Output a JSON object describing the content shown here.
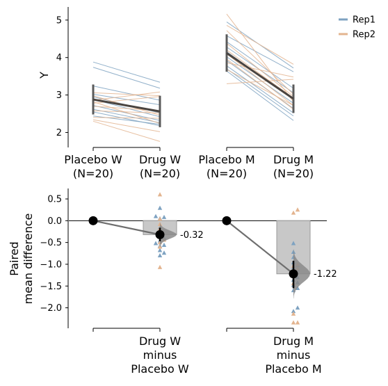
{
  "chart_data": [
    {
      "type": "line",
      "ylabel": "Y",
      "ylim": [
        1.6,
        5.35
      ],
      "yticks": [
        "2",
        "3",
        "4",
        "5"
      ],
      "groups": [
        {
          "label": "Placebo W\n(N=20)"
        },
        {
          "label": "Drug W\n(N=20)"
        },
        {
          "label": "Placebo M\n(N=20)"
        },
        {
          "label": "Drug M\n(N=20)"
        }
      ],
      "legend": {
        "placement": "top-right",
        "entries": [
          {
            "name": "Rep1",
            "color": "#7ea2c1"
          },
          {
            "name": "Rep2",
            "color": "#e3b48f"
          }
        ]
      },
      "pairs_W": [
        {
          "rep": "Rep1",
          "values": [
            3.88,
            3.34
          ]
        },
        {
          "rep": "Rep1",
          "values": [
            3.74,
            3.18
          ]
        },
        {
          "rep": "Rep1",
          "values": [
            3.24,
            2.86
          ]
        },
        {
          "rep": "Rep1",
          "values": [
            3.02,
            2.74
          ]
        },
        {
          "rep": "Rep1",
          "values": [
            2.95,
            2.52
          ]
        },
        {
          "rep": "Rep1",
          "values": [
            2.88,
            2.42
          ]
        },
        {
          "rep": "Rep1",
          "values": [
            2.72,
            2.32
          ]
        },
        {
          "rep": "Rep1",
          "values": [
            2.62,
            2.26
          ]
        },
        {
          "rep": "Rep1",
          "values": [
            2.55,
            2.18
          ]
        },
        {
          "rep": "Rep1",
          "values": [
            2.44,
            2.22
          ]
        },
        {
          "rep": "Rep2",
          "values": [
            3.06,
            2.98
          ]
        },
        {
          "rep": "Rep2",
          "values": [
            2.98,
            2.46
          ]
        },
        {
          "rep": "Rep2",
          "values": [
            2.86,
            3.08
          ]
        },
        {
          "rep": "Rep2",
          "values": [
            2.78,
            2.96
          ]
        },
        {
          "rep": "Rep2",
          "values": [
            2.82,
            2.24
          ]
        },
        {
          "rep": "Rep2",
          "values": [
            2.7,
            2.58
          ]
        },
        {
          "rep": "Rep2",
          "values": [
            2.58,
            2.52
          ]
        },
        {
          "rep": "Rep2",
          "values": [
            2.4,
            2.38
          ]
        },
        {
          "rep": "Rep2",
          "values": [
            2.34,
            2.02
          ]
        },
        {
          "rep": "Rep2",
          "values": [
            2.3,
            1.76
          ]
        }
      ],
      "pairs_M": [
        {
          "rep": "Rep1",
          "values": [
            4.95,
            3.72
          ]
        },
        {
          "rep": "Rep1",
          "values": [
            4.58,
            3.62
          ]
        },
        {
          "rep": "Rep1",
          "values": [
            4.42,
            3.18
          ]
        },
        {
          "rep": "Rep1",
          "values": [
            4.28,
            3.06
          ]
        },
        {
          "rep": "Rep1",
          "values": [
            4.16,
            2.88
          ]
        },
        {
          "rep": "Rep1",
          "values": [
            4.02,
            2.78
          ]
        },
        {
          "rep": "Rep1",
          "values": [
            3.92,
            2.64
          ]
        },
        {
          "rep": "Rep1",
          "values": [
            3.78,
            2.52
          ]
        },
        {
          "rep": "Rep1",
          "values": [
            3.7,
            2.44
          ]
        },
        {
          "rep": "Rep1",
          "values": [
            3.64,
            2.32
          ]
        },
        {
          "rep": "Rep2",
          "values": [
            5.16,
            2.82
          ]
        },
        {
          "rep": "Rep2",
          "values": [
            4.86,
            3.82
          ]
        },
        {
          "rep": "Rep2",
          "values": [
            4.72,
            3.02
          ]
        },
        {
          "rep": "Rep2",
          "values": [
            4.38,
            2.96
          ]
        },
        {
          "rep": "Rep2",
          "values": [
            4.2,
            2.92
          ]
        },
        {
          "rep": "Rep2",
          "values": [
            4.1,
            2.72
          ]
        },
        {
          "rep": "Rep2",
          "values": [
            3.96,
            2.62
          ]
        },
        {
          "rep": "Rep2",
          "values": [
            3.86,
            3.48
          ]
        },
        {
          "rep": "Rep2",
          "values": [
            3.3,
            3.42
          ]
        },
        {
          "rep": "Rep2",
          "values": [
            3.68,
            2.72
          ]
        }
      ],
      "summary": [
        {
          "group": "Placebo W",
          "mean": 2.88,
          "sd_low": 2.48,
          "sd_high": 3.28
        },
        {
          "group": "Drug W",
          "mean": 2.56,
          "sd_low": 2.14,
          "sd_high": 2.98
        },
        {
          "group": "Placebo M",
          "mean": 4.12,
          "sd_low": 3.62,
          "sd_high": 4.62
        },
        {
          "group": "Drug M",
          "mean": 2.9,
          "sd_low": 2.52,
          "sd_high": 3.28
        }
      ]
    },
    {
      "type": "scatter",
      "ylabel": "Paired\nmean difference",
      "ylim": [
        -2.47,
        0.74
      ],
      "yticks": [
        "0.5",
        "0.0",
        "−0.5",
        "−1.0",
        "−1.5",
        "−2.0"
      ],
      "comparisons": [
        {
          "label": "Drug W\nminus\nPlacebo W",
          "mean_diff": -0.32,
          "mean_diff_label": "-0.32",
          "ci": [
            -0.47,
            -0.16
          ],
          "bar_value": -0.32,
          "points_rep1": [
            0.29,
            0.1,
            0.08,
            0.05,
            -0.16,
            -0.28,
            -0.4,
            -0.46,
            -0.52,
            -0.56,
            -0.58,
            -0.68,
            -0.74,
            -0.8
          ],
          "points_rep2": [
            0.6,
            0.04,
            -0.08,
            -0.18,
            -0.36,
            -0.44,
            -0.5,
            -0.6,
            -1.07
          ]
        },
        {
          "label": "Drug M\nminus\nPlacebo M",
          "mean_diff": -1.22,
          "mean_diff_label": "-1.22",
          "ci": [
            -1.55,
            -0.92
          ],
          "bar_value": -1.22,
          "points_rep1": [
            -0.52,
            -0.72,
            -0.84,
            -0.96,
            -1.02,
            -1.06,
            -1.12,
            -1.18,
            -1.3,
            -1.36,
            -1.42,
            -1.48,
            -1.55,
            -1.6,
            -2.0,
            -2.08
          ],
          "points_rep2": [
            0.25,
            0.18,
            -1.0,
            -1.04,
            -1.1,
            -1.18,
            -1.44,
            -2.14,
            -2.34,
            -2.34
          ]
        }
      ]
    }
  ]
}
